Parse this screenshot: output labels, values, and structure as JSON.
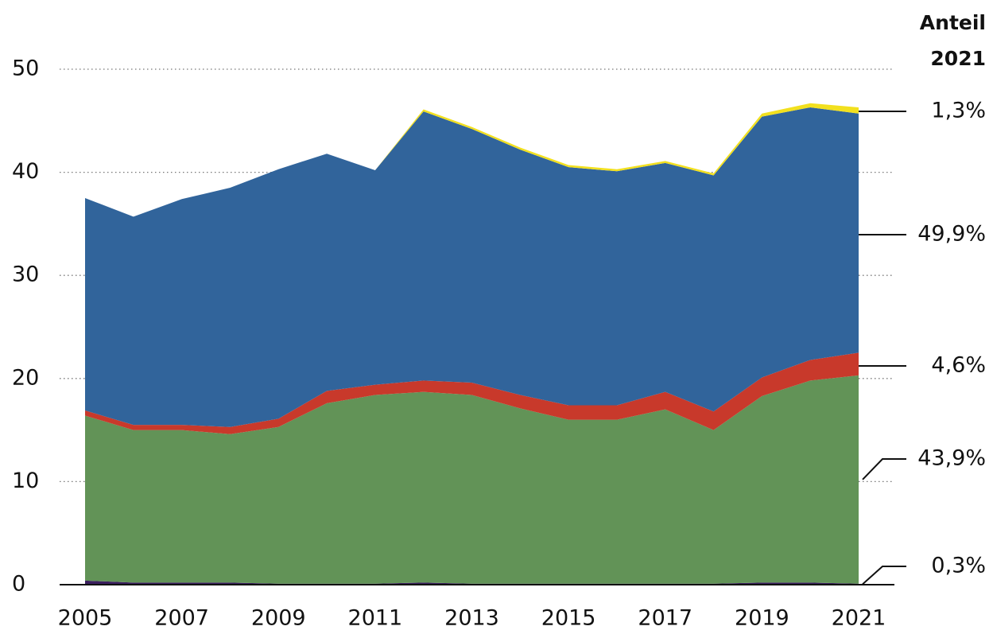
{
  "chart_data": {
    "type": "stacked_area",
    "title_lines": [
      "Anteil",
      "2021"
    ],
    "x": [
      2005,
      2006,
      2007,
      2008,
      2009,
      2010,
      2011,
      2012,
      2013,
      2014,
      2015,
      2016,
      2017,
      2018,
      2019,
      2020,
      2021
    ],
    "xlim": [
      2005,
      2021
    ],
    "xticks": [
      2005,
      2007,
      2009,
      2011,
      2013,
      2015,
      2017,
      2019,
      2021
    ],
    "ylim": [
      0,
      50
    ],
    "yticks": [
      0,
      10,
      20,
      30,
      40,
      50
    ],
    "grid": true,
    "series": [
      {
        "color": "#3b1f5e",
        "share_label": "0,3%",
        "values": [
          0.4,
          0.2,
          0.2,
          0.2,
          0.1,
          0.1,
          0.1,
          0.2,
          0.1,
          0.1,
          0.1,
          0.1,
          0.1,
          0.1,
          0.2,
          0.2,
          0.1
        ]
      },
      {
        "color": "#629357",
        "share_label": "43,9%",
        "values": [
          16.0,
          14.8,
          14.8,
          14.4,
          15.2,
          17.5,
          18.3,
          18.5,
          18.3,
          17.0,
          15.9,
          15.9,
          16.9,
          14.9,
          18.1,
          19.6,
          20.2
        ]
      },
      {
        "color": "#c8392b",
        "share_label": "4,6%",
        "values": [
          0.5,
          0.5,
          0.5,
          0.7,
          0.8,
          1.2,
          1.0,
          1.1,
          1.2,
          1.3,
          1.4,
          1.4,
          1.7,
          1.8,
          1.8,
          2.0,
          2.2
        ]
      },
      {
        "color": "#31649b",
        "share_label": "49,9%",
        "values": [
          20.6,
          20.2,
          21.9,
          23.2,
          24.2,
          23.0,
          20.8,
          26.1,
          24.6,
          23.8,
          23.1,
          22.7,
          22.2,
          22.9,
          25.3,
          24.5,
          23.2
        ]
      },
      {
        "color": "#f2e01e",
        "share_label": "1,3%",
        "values": [
          0,
          0,
          0,
          0,
          0,
          0,
          0,
          0.2,
          0.2,
          0.2,
          0.2,
          0.2,
          0.2,
          0.2,
          0.3,
          0.4,
          0.6
        ]
      }
    ]
  }
}
